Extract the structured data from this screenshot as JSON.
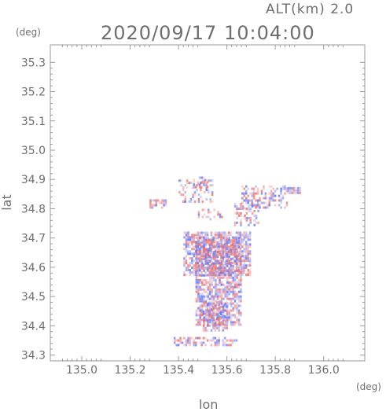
{
  "header": {
    "altitude_label": "ALT(km)  2.0",
    "datetime": "2020/09/17 10:04:00"
  },
  "axes": {
    "y_unit": "(deg)",
    "x_unit": "(deg)",
    "y_label": "lat",
    "x_label": "lon"
  },
  "colors": {
    "positive": "#f0706a",
    "negative": "#6a78f0",
    "frame": "#9a9a9a",
    "text": "#6e6e6e"
  },
  "chart_data": {
    "type": "heatmap",
    "title": "2020/09/17 10:04:00",
    "subtitle": "ALT(km)  2.0",
    "xlabel": "lon",
    "ylabel": "lat",
    "x_unit": "(deg)",
    "y_unit": "(deg)",
    "xlim": [
      134.87,
      136.17
    ],
    "ylim": [
      34.28,
      35.36
    ],
    "xticks": [
      "135.0",
      "135.2",
      "135.4",
      "135.6",
      "135.8",
      "136.0"
    ],
    "yticks": [
      "34.3",
      "34.4",
      "34.5",
      "34.6",
      "34.7",
      "34.8",
      "34.9",
      "35.0",
      "35.1",
      "35.2",
      "35.3"
    ],
    "grid": false,
    "description_of_values": "sparse positive (red) and negative (blue) echoes",
    "regions": [
      {
        "lon_min": 135.47,
        "lon_max": 135.66,
        "lat_min": 34.4,
        "lat_max": 34.7,
        "density": 0.75
      },
      {
        "lon_min": 135.42,
        "lon_max": 135.7,
        "lat_min": 34.57,
        "lat_max": 34.72,
        "density": 0.7
      },
      {
        "lon_min": 135.5,
        "lon_max": 135.6,
        "lat_min": 34.38,
        "lat_max": 34.48,
        "density": 0.6
      },
      {
        "lon_min": 135.38,
        "lon_max": 135.64,
        "lat_min": 34.33,
        "lat_max": 34.36,
        "density": 0.45
      },
      {
        "lon_min": 135.66,
        "lon_max": 135.85,
        "lat_min": 34.8,
        "lat_max": 34.88,
        "density": 0.45
      },
      {
        "lon_min": 135.85,
        "lon_max": 135.9,
        "lat_min": 34.85,
        "lat_max": 34.87,
        "density": 0.9
      },
      {
        "lon_min": 135.63,
        "lon_max": 135.73,
        "lat_min": 34.74,
        "lat_max": 34.82,
        "density": 0.4
      },
      {
        "lon_min": 135.4,
        "lon_max": 135.54,
        "lat_min": 34.82,
        "lat_max": 34.9,
        "density": 0.3
      },
      {
        "lon_min": 135.28,
        "lon_max": 135.35,
        "lat_min": 34.8,
        "lat_max": 34.83,
        "density": 0.6
      },
      {
        "lon_min": 135.48,
        "lon_max": 135.58,
        "lat_min": 34.76,
        "lat_max": 34.8,
        "density": 0.35
      },
      {
        "lon_min": 135.46,
        "lon_max": 135.52,
        "lat_min": 34.87,
        "lat_max": 34.91,
        "density": 0.6
      }
    ]
  }
}
